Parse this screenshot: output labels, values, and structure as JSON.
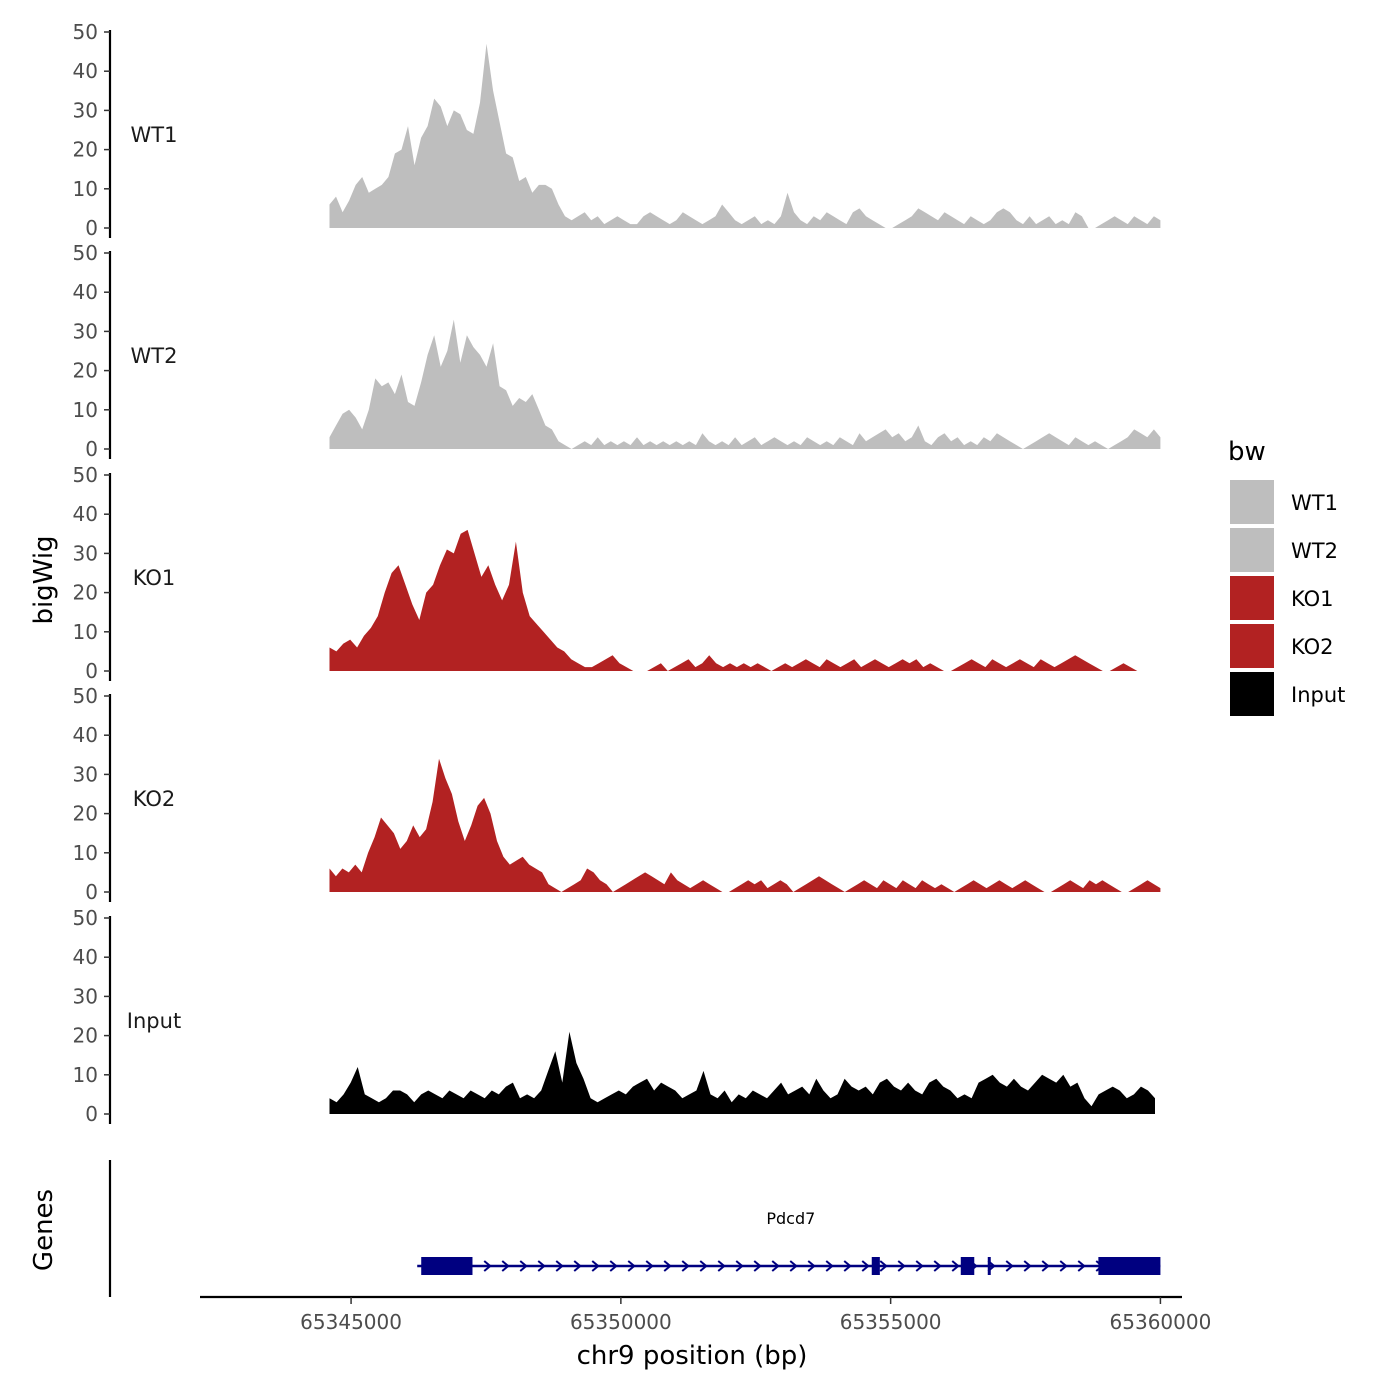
{
  "chart_data": {
    "type": "area",
    "chromosome": "chr9",
    "ylabel": "bigWig",
    "xlabel": "chr9 position (bp)",
    "gene_track_label": "Genes",
    "ylim": [
      0,
      50
    ],
    "yticks": [
      0,
      10,
      20,
      30,
      40,
      50
    ],
    "xlim": [
      65342200,
      65360400
    ],
    "xticks": [
      65345000,
      65350000,
      65355000,
      65360000
    ],
    "xtick_labels": [
      "65345000",
      "65350000",
      "65355000",
      "65360000"
    ],
    "legend": {
      "title": "bw",
      "position": "right",
      "entries": [
        {
          "name": "WT1",
          "color": "#BEBEBE"
        },
        {
          "name": "WT2",
          "color": "#BEBEBE"
        },
        {
          "name": "KO1",
          "color": "#B22222"
        },
        {
          "name": "KO2",
          "color": "#B22222"
        },
        {
          "name": "Input",
          "color": "#000000"
        }
      ]
    },
    "series": [
      {
        "name": "WT1",
        "color": "#BEBEBE",
        "start": 65344600,
        "end": 65360000,
        "values": [
          6,
          8,
          4,
          7,
          11,
          13,
          9,
          10,
          11,
          13,
          19,
          20,
          26,
          16,
          23,
          26,
          33,
          31,
          26,
          30,
          29,
          25,
          24,
          32,
          47,
          35,
          27,
          19,
          18,
          12,
          13,
          9,
          11,
          11,
          10,
          6,
          3,
          2,
          3,
          4,
          2,
          3,
          1,
          2,
          3,
          2,
          1,
          1,
          3,
          4,
          3,
          2,
          1,
          2,
          4,
          3,
          2,
          1,
          2,
          3,
          6,
          4,
          2,
          1,
          2,
          3,
          1,
          2,
          1,
          3,
          9,
          4,
          2,
          1,
          3,
          2,
          4,
          3,
          2,
          1,
          4,
          5,
          3,
          2,
          1,
          0,
          0,
          1,
          2,
          3,
          5,
          4,
          3,
          2,
          4,
          3,
          2,
          1,
          3,
          2,
          1,
          2,
          4,
          5,
          4,
          2,
          1,
          3,
          1,
          2,
          3,
          1,
          2,
          1,
          4,
          3,
          0,
          0,
          1,
          2,
          3,
          2,
          1,
          3,
          2,
          1,
          3,
          2
        ]
      },
      {
        "name": "WT2",
        "color": "#BEBEBE",
        "start": 65344600,
        "end": 65360000,
        "values": [
          3,
          6,
          9,
          10,
          8,
          5,
          10,
          18,
          16,
          17,
          14,
          19,
          12,
          11,
          17,
          24,
          29,
          21,
          25,
          33,
          22,
          29,
          26,
          24,
          21,
          27,
          16,
          15,
          11,
          13,
          12,
          14,
          10,
          6,
          5,
          2,
          1,
          0,
          1,
          2,
          1,
          3,
          1,
          2,
          1,
          2,
          1,
          3,
          1,
          2,
          1,
          2,
          1,
          2,
          1,
          2,
          1,
          4,
          2,
          1,
          2,
          1,
          3,
          1,
          2,
          3,
          1,
          2,
          3,
          2,
          1,
          2,
          1,
          3,
          2,
          1,
          2,
          1,
          3,
          2,
          1,
          4,
          2,
          3,
          4,
          5,
          3,
          4,
          2,
          3,
          6,
          2,
          1,
          3,
          4,
          2,
          3,
          1,
          2,
          1,
          3,
          2,
          4,
          3,
          2,
          1,
          0,
          1,
          2,
          3,
          4,
          3,
          2,
          1,
          3,
          2,
          1,
          2,
          1,
          0,
          1,
          2,
          3,
          5,
          4,
          3,
          5,
          3
        ]
      },
      {
        "name": "KO1",
        "color": "#B22222",
        "start": 65344600,
        "end": 65359700,
        "values": [
          6,
          5,
          7,
          8,
          6,
          9,
          11,
          14,
          20,
          25,
          27,
          22,
          17,
          13,
          20,
          22,
          27,
          31,
          30,
          35,
          36,
          30,
          24,
          27,
          22,
          18,
          22,
          33,
          20,
          14,
          12,
          10,
          8,
          6,
          5,
          3,
          2,
          1,
          1,
          2,
          3,
          4,
          2,
          1,
          0,
          0,
          0,
          1,
          2,
          0,
          1,
          2,
          3,
          1,
          2,
          4,
          2,
          1,
          2,
          1,
          2,
          1,
          2,
          1,
          0,
          1,
          2,
          1,
          2,
          3,
          2,
          1,
          3,
          2,
          1,
          2,
          3,
          1,
          2,
          3,
          2,
          1,
          2,
          3,
          2,
          3,
          1,
          2,
          1,
          0,
          0,
          1,
          2,
          3,
          2,
          1,
          3,
          2,
          1,
          2,
          3,
          2,
          1,
          3,
          2,
          1,
          2,
          3,
          4,
          3,
          2,
          1,
          0,
          0,
          1,
          2,
          1,
          0,
          0
        ]
      },
      {
        "name": "KO2",
        "color": "#B22222",
        "start": 65344600,
        "end": 65360000,
        "values": [
          6,
          4,
          6,
          5,
          7,
          5,
          10,
          14,
          19,
          17,
          15,
          11,
          13,
          17,
          14,
          16,
          23,
          34,
          29,
          25,
          18,
          13,
          17,
          22,
          24,
          20,
          13,
          9,
          7,
          8,
          9,
          7,
          6,
          5,
          2,
          1,
          0,
          1,
          2,
          3,
          6,
          5,
          3,
          2,
          0,
          1,
          2,
          3,
          4,
          5,
          4,
          3,
          2,
          5,
          3,
          2,
          1,
          2,
          3,
          2,
          1,
          0,
          0,
          1,
          2,
          3,
          2,
          3,
          1,
          2,
          3,
          2,
          0,
          1,
          2,
          3,
          4,
          3,
          2,
          1,
          0,
          1,
          2,
          3,
          2,
          1,
          3,
          2,
          1,
          3,
          2,
          1,
          3,
          2,
          1,
          2,
          1,
          0,
          1,
          2,
          3,
          2,
          1,
          2,
          3,
          2,
          1,
          2,
          3,
          2,
          1,
          0,
          0,
          1,
          2,
          3,
          2,
          1,
          3,
          2,
          3,
          2,
          1,
          0,
          0,
          1,
          2,
          3,
          2,
          1
        ]
      },
      {
        "name": "Input",
        "color": "#000000",
        "start": 65344600,
        "end": 65359900,
        "values": [
          4,
          3,
          5,
          8,
          12,
          5,
          4,
          3,
          4,
          6,
          6,
          5,
          3,
          5,
          6,
          5,
          4,
          6,
          5,
          4,
          6,
          5,
          4,
          6,
          5,
          7,
          8,
          4,
          5,
          4,
          6,
          11,
          16,
          8,
          21,
          13,
          9,
          4,
          3,
          4,
          5,
          6,
          5,
          7,
          8,
          9,
          6,
          8,
          7,
          6,
          4,
          5,
          6,
          11,
          5,
          4,
          6,
          3,
          5,
          4,
          6,
          5,
          4,
          6,
          8,
          5,
          6,
          7,
          5,
          9,
          6,
          4,
          5,
          9,
          7,
          6,
          7,
          5,
          8,
          9,
          7,
          6,
          8,
          6,
          5,
          8,
          9,
          7,
          6,
          4,
          5,
          4,
          8,
          9,
          10,
          8,
          7,
          9,
          7,
          6,
          8,
          10,
          9,
          8,
          10,
          7,
          8,
          4,
          2,
          5,
          6,
          7,
          6,
          4,
          5,
          7,
          6,
          4
        ]
      }
    ],
    "genes": [
      {
        "name": "Pdcd7",
        "start": 65346300,
        "end": 65360000,
        "strand": "+",
        "exons": [
          [
            65346300,
            65347250
          ],
          [
            65354650,
            65354800
          ],
          [
            65356300,
            65356550
          ],
          [
            65356800,
            65356850
          ],
          [
            65358850,
            65360000
          ]
        ]
      }
    ]
  }
}
